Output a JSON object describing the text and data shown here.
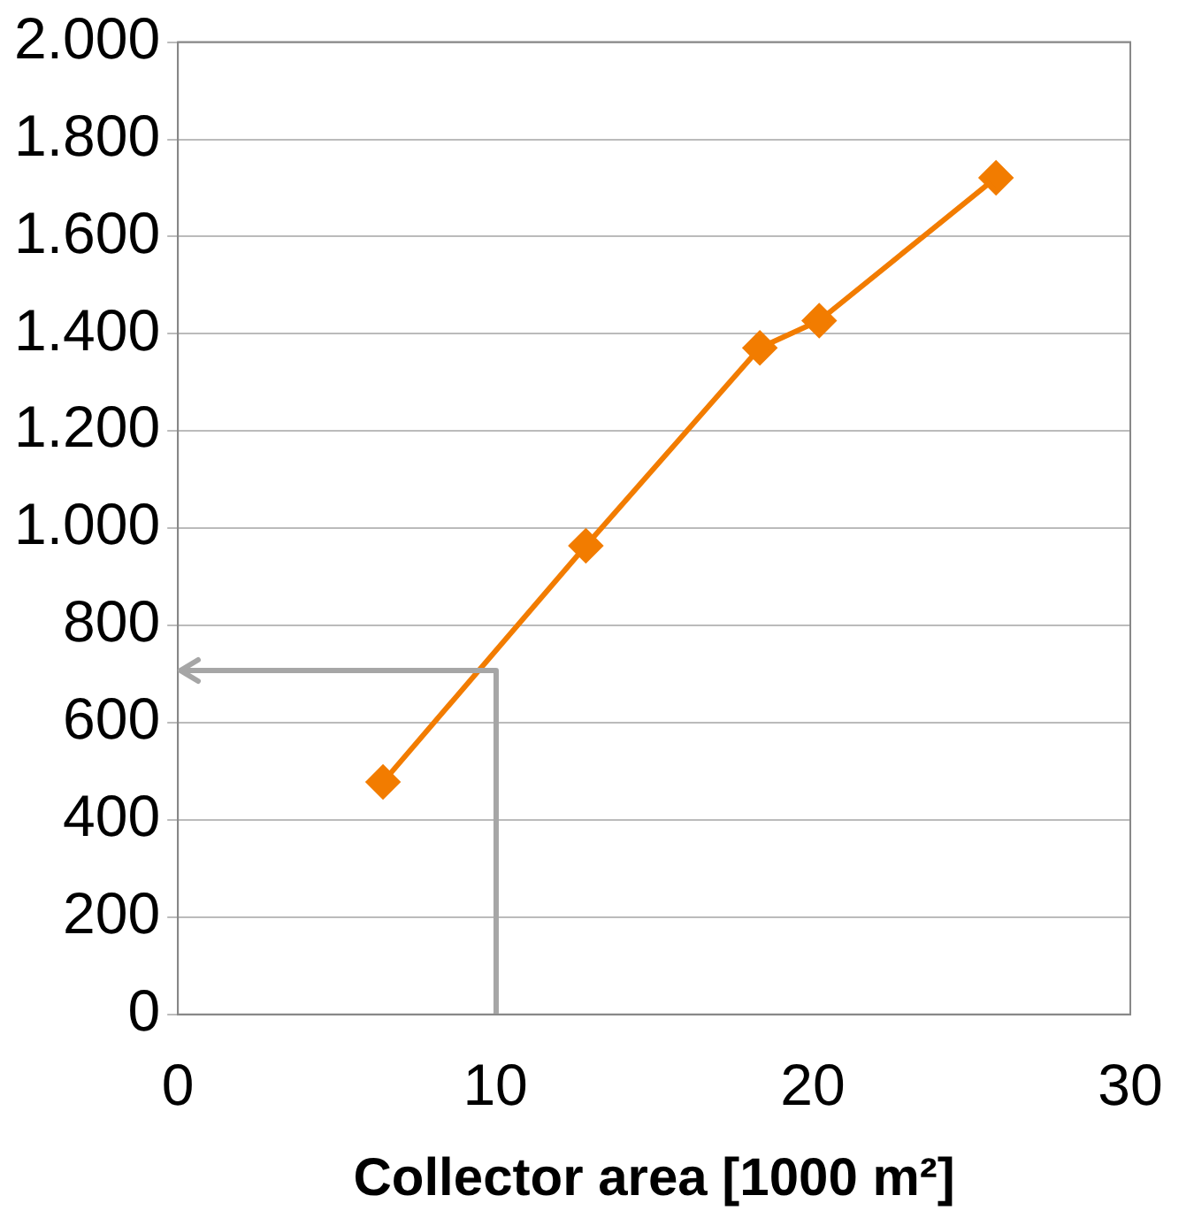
{
  "chart_data": {
    "type": "line",
    "xlabel": "Collector area [1000 m²]",
    "series": [
      {
        "color": "#f27c00",
        "x": [
          6.46,
          12.85,
          18.33,
          20.2,
          25.77
        ],
        "values": [
          478,
          964,
          1371,
          1427,
          1721
        ],
        "marker": "diamond"
      }
    ],
    "xlim": [
      0,
      30
    ],
    "xticks": [
      0,
      10,
      20,
      30
    ],
    "ylim": [
      0,
      2000
    ],
    "yticks": [
      0,
      200,
      400,
      600,
      800,
      {
        "value": 1000,
        "label": "1.000"
      },
      {
        "value": 1200,
        "label": "1.200"
      },
      {
        "value": 1400,
        "label": "1.400"
      },
      {
        "value": 1600,
        "label": "1.600"
      },
      {
        "value": 1800,
        "label": "1.800"
      },
      {
        "value": 2000,
        "label": "2.000"
      }
    ],
    "grid": "y",
    "legend": false
  }
}
